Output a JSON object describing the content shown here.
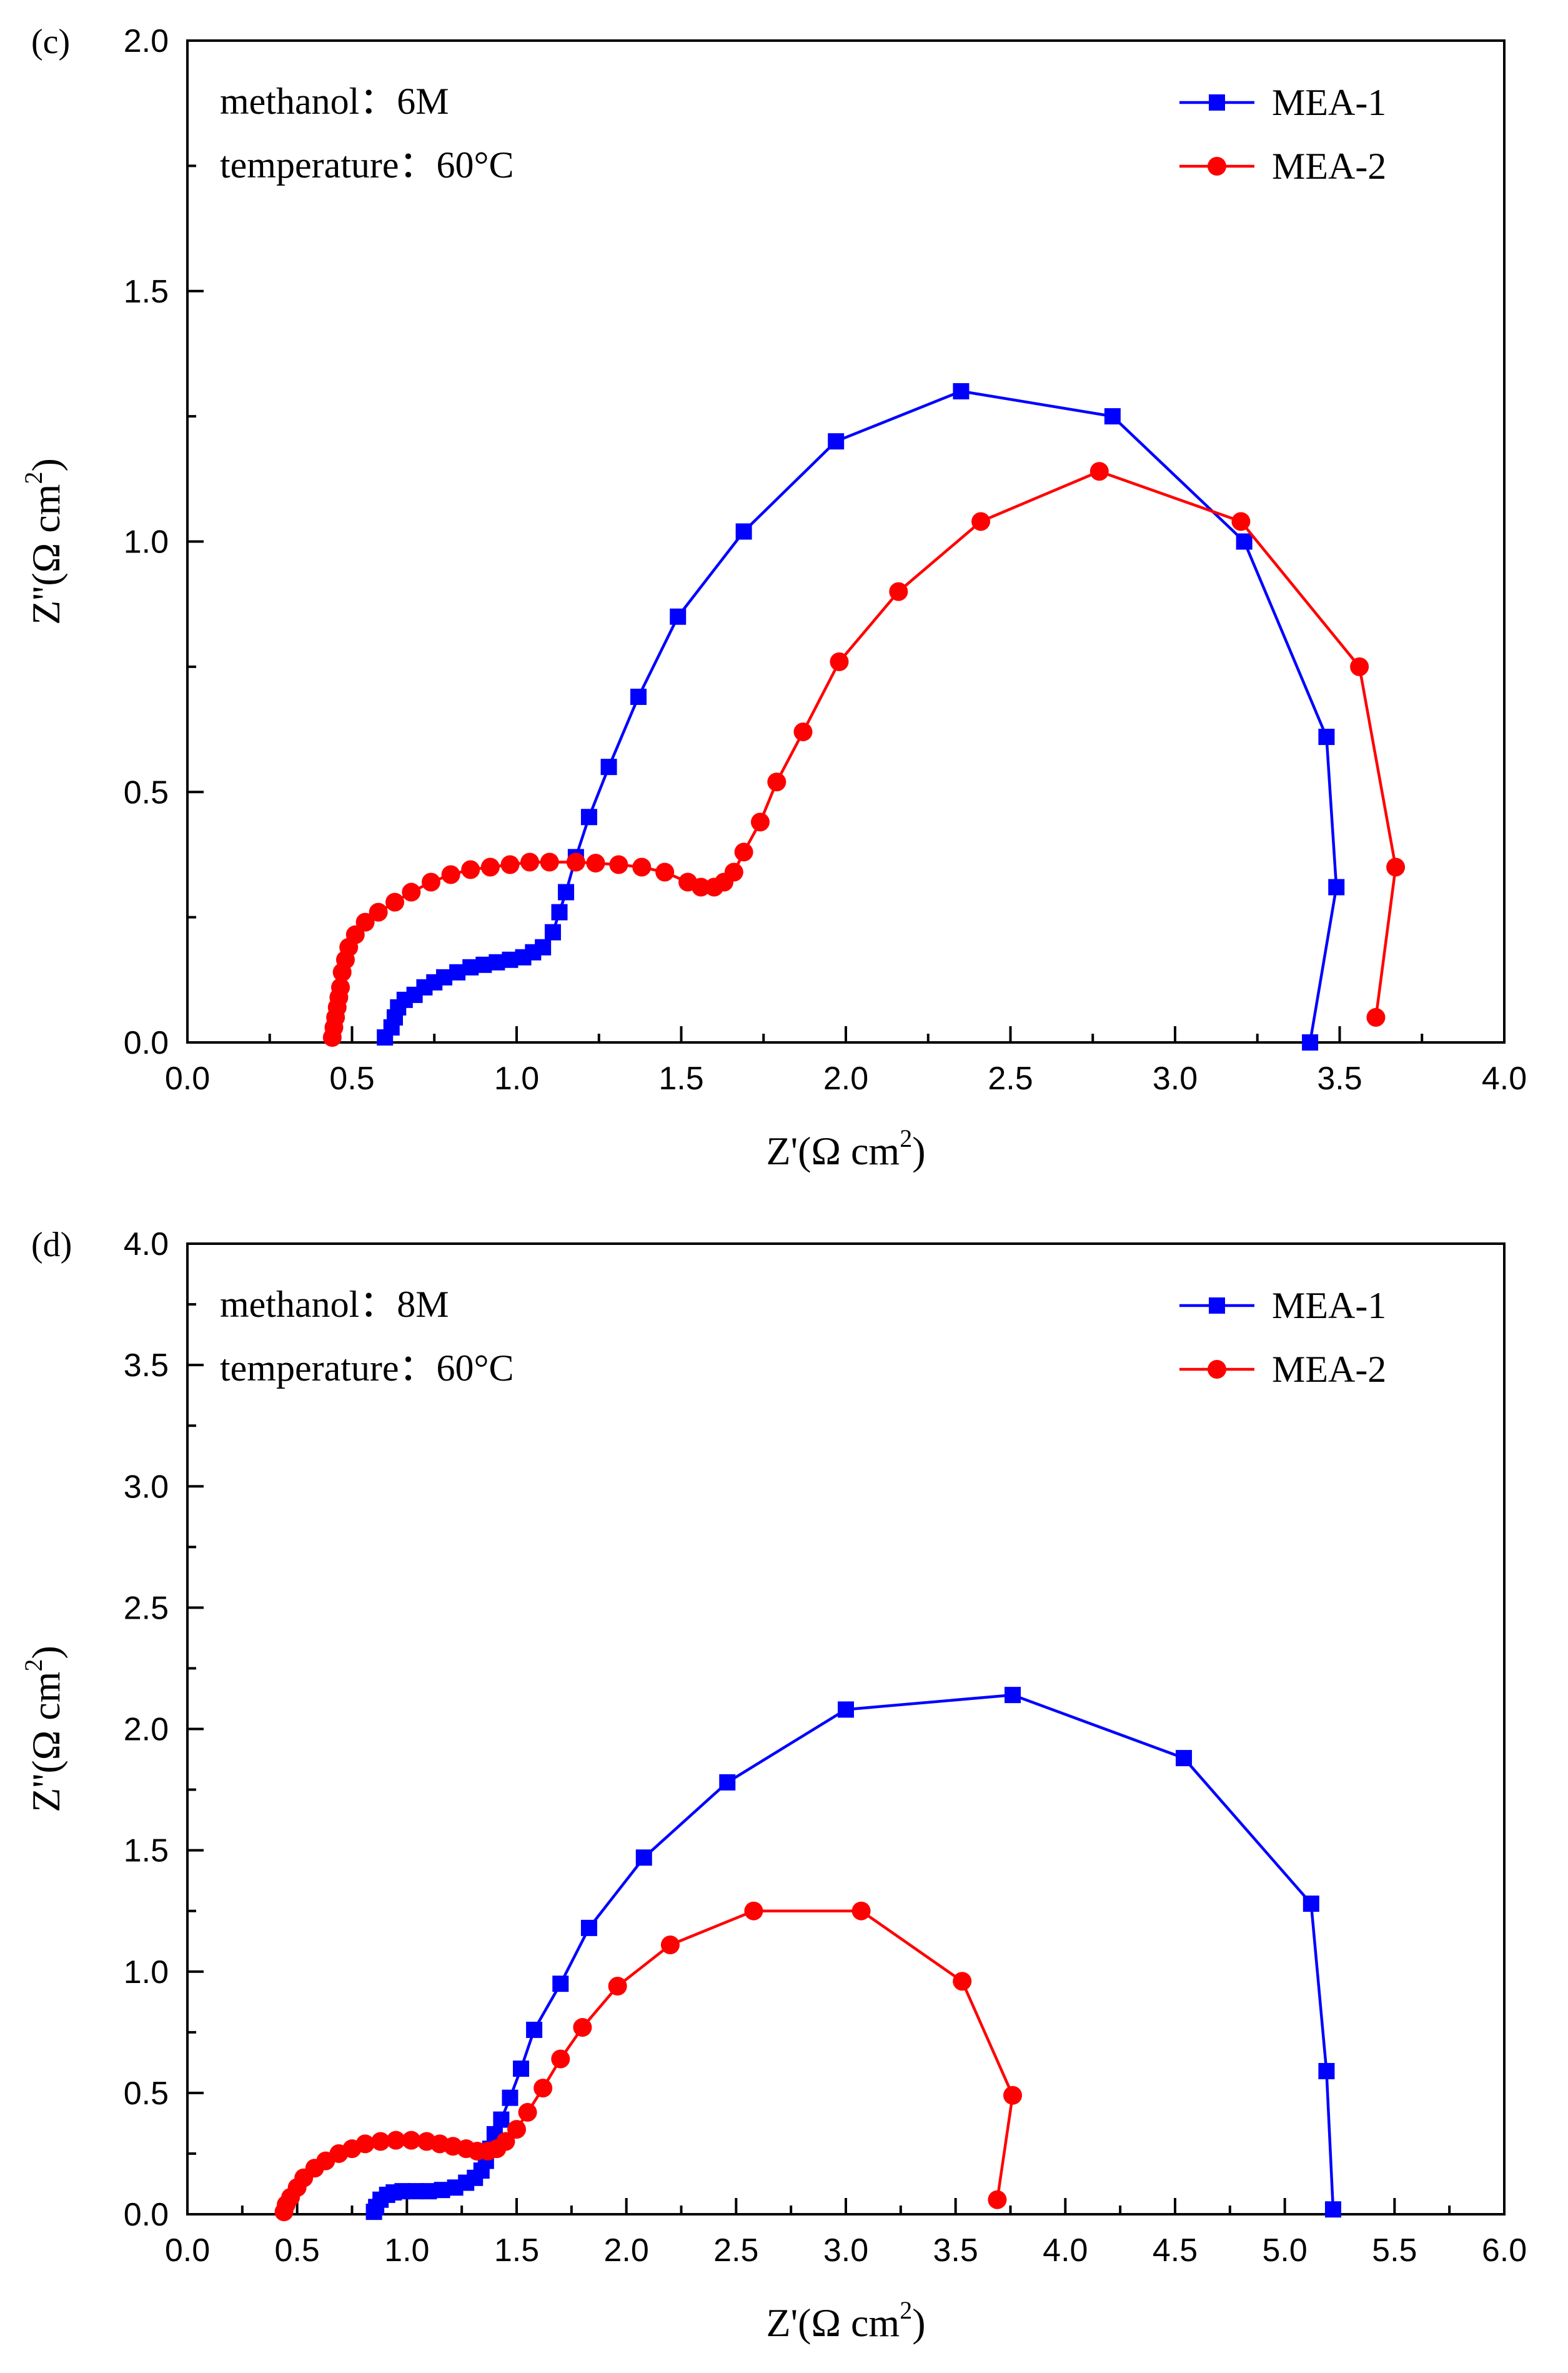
{
  "chart_data": [
    {
      "type": "line",
      "panel_label": "(c)",
      "title": "",
      "xlabel": "Z'(Ω cm",
      "xlabel_sup": "2",
      "xlabel_tail": ")",
      "ylabel": "Z''(Ω cm",
      "ylabel_sup": "2",
      "ylabel_tail": ")",
      "xlim": [
        0,
        4
      ],
      "ylim": [
        0,
        2
      ],
      "xticks": [
        "0.0",
        "0.5",
        "1.0",
        "1.5",
        "2.0",
        "2.5",
        "3.0",
        "3.5",
        "4.0"
      ],
      "yticks": [
        "0.0",
        "0.5",
        "1.0",
        "1.5",
        "2.0"
      ],
      "annotations": [
        "methanol：6M",
        "temperature：60°C"
      ],
      "legend_position": "top-right",
      "grid": false,
      "series": [
        {
          "name": "MEA-1",
          "color": "#0000ff",
          "marker": "square",
          "points": [
            [
              3.41,
              0.0
            ],
            [
              3.49,
              0.31
            ],
            [
              3.46,
              0.61
            ],
            [
              3.21,
              1.0
            ],
            [
              2.81,
              1.25
            ],
            [
              2.35,
              1.3
            ],
            [
              1.97,
              1.2
            ],
            [
              1.69,
              1.02
            ],
            [
              1.49,
              0.85
            ],
            [
              1.37,
              0.69
            ],
            [
              1.28,
              0.55
            ],
            [
              1.22,
              0.45
            ],
            [
              1.18,
              0.37
            ],
            [
              1.15,
              0.3
            ],
            [
              1.13,
              0.26
            ],
            [
              1.11,
              0.22
            ],
            [
              1.08,
              0.19
            ],
            [
              1.05,
              0.18
            ],
            [
              1.02,
              0.17
            ],
            [
              0.98,
              0.165
            ],
            [
              0.94,
              0.16
            ],
            [
              0.9,
              0.155
            ],
            [
              0.86,
              0.15
            ],
            [
              0.82,
              0.14
            ],
            [
              0.78,
              0.13
            ],
            [
              0.75,
              0.12
            ],
            [
              0.72,
              0.11
            ],
            [
              0.69,
              0.095
            ],
            [
              0.66,
              0.085
            ],
            [
              0.64,
              0.07
            ],
            [
              0.63,
              0.05
            ],
            [
              0.62,
              0.03
            ],
            [
              0.6,
              0.01
            ]
          ]
        },
        {
          "name": "MEA-2",
          "color": "#ff0000",
          "marker": "circle",
          "points": [
            [
              3.61,
              0.05
            ],
            [
              3.67,
              0.35
            ],
            [
              3.56,
              0.75
            ],
            [
              3.2,
              1.04
            ],
            [
              2.77,
              1.14
            ],
            [
              2.41,
              1.04
            ],
            [
              2.16,
              0.9
            ],
            [
              1.98,
              0.76
            ],
            [
              1.87,
              0.62
            ],
            [
              1.79,
              0.52
            ],
            [
              1.74,
              0.44
            ],
            [
              1.69,
              0.38
            ],
            [
              1.66,
              0.34
            ],
            [
              1.63,
              0.32
            ],
            [
              1.6,
              0.31
            ],
            [
              1.56,
              0.31
            ],
            [
              1.52,
              0.32
            ],
            [
              1.45,
              0.34
            ],
            [
              1.38,
              0.35
            ],
            [
              1.31,
              0.355
            ],
            [
              1.24,
              0.358
            ],
            [
              1.18,
              0.36
            ],
            [
              1.1,
              0.36
            ],
            [
              1.04,
              0.36
            ],
            [
              0.98,
              0.355
            ],
            [
              0.92,
              0.35
            ],
            [
              0.86,
              0.345
            ],
            [
              0.8,
              0.335
            ],
            [
              0.74,
              0.32
            ],
            [
              0.68,
              0.3
            ],
            [
              0.63,
              0.28
            ],
            [
              0.58,
              0.26
            ],
            [
              0.54,
              0.24
            ],
            [
              0.51,
              0.215
            ],
            [
              0.49,
              0.19
            ],
            [
              0.48,
              0.165
            ],
            [
              0.47,
              0.14
            ],
            [
              0.465,
              0.11
            ],
            [
              0.46,
              0.09
            ],
            [
              0.455,
              0.07
            ],
            [
              0.45,
              0.05
            ],
            [
              0.445,
              0.03
            ],
            [
              0.44,
              0.01
            ]
          ]
        }
      ]
    },
    {
      "type": "line",
      "panel_label": "(d)",
      "title": "",
      "xlabel": "Z'(Ω cm",
      "xlabel_sup": "2",
      "xlabel_tail": ")",
      "ylabel": "Z''(Ω cm",
      "ylabel_sup": "2",
      "ylabel_tail": ")",
      "xlim": [
        0,
        6
      ],
      "ylim": [
        0,
        4
      ],
      "xticks": [
        "0.0",
        "0.5",
        "1.0",
        "1.5",
        "2.0",
        "2.5",
        "3.0",
        "3.5",
        "4.0",
        "4.5",
        "5.0",
        "5.5",
        "6.0"
      ],
      "yticks": [
        "0.0",
        "0.5",
        "1.0",
        "1.5",
        "2.0",
        "2.5",
        "3.0",
        "3.5",
        "4.0"
      ],
      "annotations": [
        "methanol：8M",
        "temperature：60°C"
      ],
      "legend_position": "top-right",
      "grid": false,
      "series": [
        {
          "name": "MEA-1",
          "color": "#0000ff",
          "marker": "square",
          "points": [
            [
              5.22,
              0.02
            ],
            [
              5.19,
              0.59
            ],
            [
              5.12,
              1.28
            ],
            [
              4.54,
              1.88
            ],
            [
              3.76,
              2.14
            ],
            [
              3.0,
              2.08
            ],
            [
              2.46,
              1.78
            ],
            [
              2.08,
              1.47
            ],
            [
              1.83,
              1.18
            ],
            [
              1.7,
              0.95
            ],
            [
              1.58,
              0.76
            ],
            [
              1.52,
              0.6
            ],
            [
              1.47,
              0.48
            ],
            [
              1.43,
              0.39
            ],
            [
              1.4,
              0.33
            ],
            [
              1.38,
              0.27
            ],
            [
              1.36,
              0.22
            ],
            [
              1.34,
              0.18
            ],
            [
              1.31,
              0.15
            ],
            [
              1.27,
              0.13
            ],
            [
              1.22,
              0.11
            ],
            [
              1.16,
              0.1
            ],
            [
              1.1,
              0.095
            ],
            [
              1.04,
              0.095
            ],
            [
              0.98,
              0.095
            ],
            [
              0.94,
              0.09
            ],
            [
              0.91,
              0.08
            ],
            [
              0.88,
              0.06
            ],
            [
              0.86,
              0.03
            ],
            [
              0.85,
              0.01
            ]
          ]
        },
        {
          "name": "MEA-2",
          "color": "#ff0000",
          "marker": "circle",
          "points": [
            [
              3.69,
              0.06
            ],
            [
              3.76,
              0.49
            ],
            [
              3.53,
              0.96
            ],
            [
              3.07,
              1.25
            ],
            [
              2.58,
              1.25
            ],
            [
              2.2,
              1.11
            ],
            [
              1.96,
              0.94
            ],
            [
              1.8,
              0.77
            ],
            [
              1.7,
              0.64
            ],
            [
              1.62,
              0.52
            ],
            [
              1.55,
              0.42
            ],
            [
              1.5,
              0.35
            ],
            [
              1.45,
              0.3
            ],
            [
              1.41,
              0.27
            ],
            [
              1.37,
              0.26
            ],
            [
              1.32,
              0.26
            ],
            [
              1.27,
              0.27
            ],
            [
              1.21,
              0.28
            ],
            [
              1.15,
              0.29
            ],
            [
              1.09,
              0.3
            ],
            [
              1.02,
              0.305
            ],
            [
              0.95,
              0.305
            ],
            [
              0.88,
              0.3
            ],
            [
              0.81,
              0.29
            ],
            [
              0.75,
              0.27
            ],
            [
              0.69,
              0.25
            ],
            [
              0.63,
              0.22
            ],
            [
              0.58,
              0.19
            ],
            [
              0.53,
              0.15
            ],
            [
              0.5,
              0.11
            ],
            [
              0.47,
              0.07
            ],
            [
              0.45,
              0.04
            ],
            [
              0.44,
              0.01
            ]
          ]
        }
      ]
    }
  ]
}
